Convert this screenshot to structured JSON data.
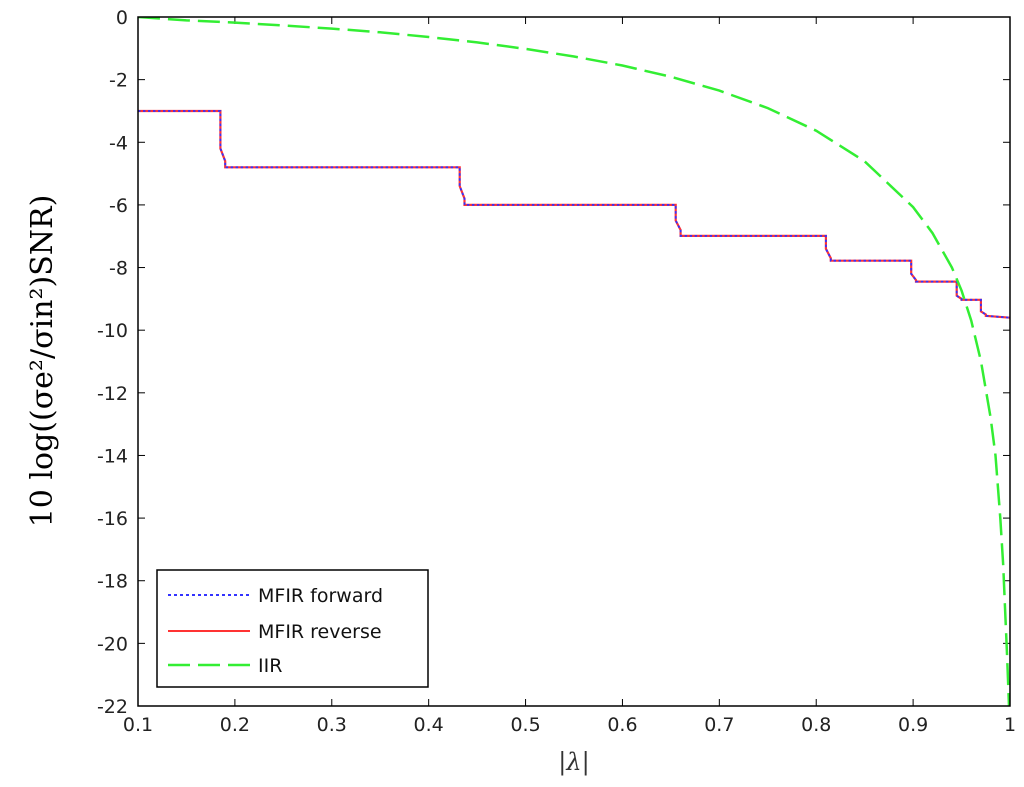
{
  "chart_data": {
    "type": "line",
    "xlabel": "|λ|",
    "ylabel": "10 log((σe²/σin²)SNR)",
    "xlim": [
      0.1,
      1
    ],
    "ylim": [
      -22,
      0
    ],
    "xticks": [
      "0.1",
      "0.2",
      "0.3",
      "0.4",
      "0.5",
      "0.6",
      "0.7",
      "0.8",
      "0.9",
      "1"
    ],
    "yticks": [
      "0",
      "-2",
      "-4",
      "-6",
      "-8",
      "-10",
      "-12",
      "-14",
      "-16",
      "-18",
      "-20",
      "-22"
    ],
    "grid": false,
    "legend_position": "bottom-left",
    "series": [
      {
        "name": "MFIR forward",
        "color": "#3333ff",
        "style": "dotted",
        "x": [
          0.1,
          0.185,
          0.185,
          0.19,
          0.19,
          0.432,
          0.432,
          0.437,
          0.437,
          0.655,
          0.655,
          0.66,
          0.66,
          0.81,
          0.81,
          0.815,
          0.815,
          0.898,
          0.898,
          0.903,
          0.903,
          0.945,
          0.945,
          0.95,
          0.95,
          0.97,
          0.97,
          0.975,
          0.975,
          1.0
        ],
        "y": [
          -3.0,
          -3.0,
          -4.2,
          -4.6,
          -4.8,
          -4.8,
          -5.4,
          -5.8,
          -6.0,
          -6.0,
          -6.5,
          -6.8,
          -6.99,
          -6.99,
          -7.4,
          -7.7,
          -7.78,
          -7.78,
          -8.2,
          -8.4,
          -8.45,
          -8.45,
          -8.9,
          -9.0,
          -9.03,
          -9.03,
          -9.4,
          -9.5,
          -9.54,
          -9.6
        ]
      },
      {
        "name": "MFIR reverse",
        "color": "#ff3333",
        "style": "solid",
        "x": [
          0.1,
          0.185,
          0.185,
          0.19,
          0.19,
          0.432,
          0.432,
          0.437,
          0.437,
          0.655,
          0.655,
          0.66,
          0.66,
          0.81,
          0.81,
          0.815,
          0.815,
          0.898,
          0.898,
          0.903,
          0.903,
          0.945,
          0.945,
          0.95,
          0.95,
          0.97,
          0.97,
          0.975,
          0.975,
          1.0
        ],
        "y": [
          -3.0,
          -3.0,
          -4.2,
          -4.6,
          -4.8,
          -4.8,
          -5.4,
          -5.8,
          -6.0,
          -6.0,
          -6.5,
          -6.8,
          -6.99,
          -6.99,
          -7.4,
          -7.7,
          -7.78,
          -7.78,
          -8.2,
          -8.4,
          -8.45,
          -8.45,
          -8.9,
          -9.0,
          -9.03,
          -9.03,
          -9.4,
          -9.5,
          -9.54,
          -9.6
        ]
      },
      {
        "name": "IIR",
        "color": "#33ee33",
        "style": "dashed",
        "x": [
          0.1,
          0.15,
          0.2,
          0.25,
          0.3,
          0.35,
          0.4,
          0.45,
          0.5,
          0.55,
          0.6,
          0.65,
          0.7,
          0.75,
          0.8,
          0.85,
          0.9,
          0.92,
          0.94,
          0.95,
          0.96,
          0.97,
          0.98,
          0.985,
          0.99,
          0.993,
          0.995,
          0.997,
          0.999
        ],
        "y": [
          0.0,
          -0.11,
          -0.18,
          -0.27,
          -0.37,
          -0.49,
          -0.64,
          -0.81,
          -1.02,
          -1.26,
          -1.55,
          -1.91,
          -2.35,
          -2.91,
          -3.63,
          -4.61,
          -6.07,
          -6.9,
          -8.0,
          -8.74,
          -9.69,
          -10.98,
          -12.79,
          -14.0,
          -16.0,
          -17.5,
          -19.0,
          -20.4,
          -22.0
        ]
      }
    ]
  }
}
